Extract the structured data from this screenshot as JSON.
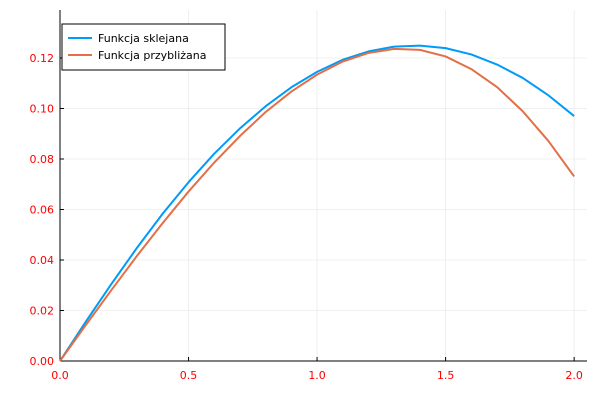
{
  "chart_data": {
    "type": "line",
    "title": "",
    "xlabel": "",
    "ylabel": "",
    "xlim": [
      0,
      2.05
    ],
    "ylim": [
      0,
      0.139
    ],
    "x_ticks": [
      0.0,
      0.5,
      1.0,
      1.5,
      2.0
    ],
    "x_tick_labels": [
      "0.0",
      "0.5",
      "1.0",
      "1.5",
      "2.0"
    ],
    "y_ticks": [
      0.0,
      0.02,
      0.04,
      0.06,
      0.08,
      0.1,
      0.12
    ],
    "y_tick_labels": [
      "0.00",
      "0.02",
      "0.04",
      "0.06",
      "0.08",
      "0.10",
      "0.12"
    ],
    "grid": true,
    "legend_position": "top-left",
    "tick_label_color": "#ff0000",
    "series": [
      {
        "name": "Funkcja sklejana",
        "color": "#009af9",
        "x": [
          0.0,
          0.1,
          0.2,
          0.3,
          0.4,
          0.5,
          0.6,
          0.7,
          0.8,
          0.9,
          1.0,
          1.1,
          1.2,
          1.3,
          1.4,
          1.5,
          1.6,
          1.7,
          1.8,
          1.9,
          2.0
        ],
        "y": [
          0.0,
          0.0155,
          0.0305,
          0.0449,
          0.0584,
          0.0708,
          0.0821,
          0.0921,
          0.1009,
          0.1084,
          0.1145,
          0.1193,
          0.1226,
          0.1245,
          0.1249,
          0.1239,
          0.1214,
          0.1174,
          0.1121,
          0.1052,
          0.097
        ]
      },
      {
        "name": "Funkcja przybliżana",
        "color": "#e26f46",
        "x": [
          0.0,
          0.1,
          0.2,
          0.3,
          0.4,
          0.5,
          0.6,
          0.7,
          0.8,
          0.9,
          1.0,
          1.1,
          1.2,
          1.3,
          1.4,
          1.5,
          1.6,
          1.7,
          1.8,
          1.9,
          2.0
        ],
        "y": [
          0.0,
          0.0142,
          0.0281,
          0.0417,
          0.0547,
          0.0671,
          0.0786,
          0.0891,
          0.0986,
          0.1067,
          0.1134,
          0.1186,
          0.122,
          0.1236,
          0.1232,
          0.1206,
          0.1156,
          0.1085,
          0.0989,
          0.0871,
          0.0731
        ]
      }
    ]
  }
}
